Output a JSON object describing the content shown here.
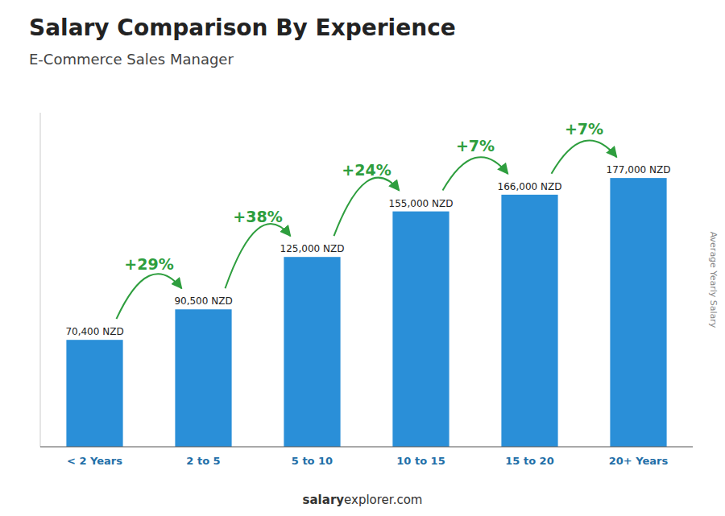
{
  "chart_data": {
    "type": "bar",
    "title": "Salary Comparison By Experience",
    "subtitle": "E-Commerce Sales Manager",
    "y_label": "Average Yearly Salary",
    "categories": [
      "< 2 Years",
      "2 to 5",
      "5 to 10",
      "10 to 15",
      "15 to 20",
      "20+ Years"
    ],
    "values": [
      70400,
      90500,
      125000,
      155000,
      166000,
      177000
    ],
    "value_labels": [
      "70,400 NZD",
      "90,500 NZD",
      "125,000 NZD",
      "155,000 NZD",
      "166,000 NZD",
      "177,000 NZD"
    ],
    "change_labels": [
      "+29%",
      "+38%",
      "+24%",
      "+7%",
      "+7%"
    ],
    "watermark": [
      "salary",
      "explorer.com"
    ],
    "color": "#2a8fd8",
    "ylim": [
      0,
      220000
    ],
    "data_labels": true,
    "tick_labels": "x",
    "grid": false
  }
}
